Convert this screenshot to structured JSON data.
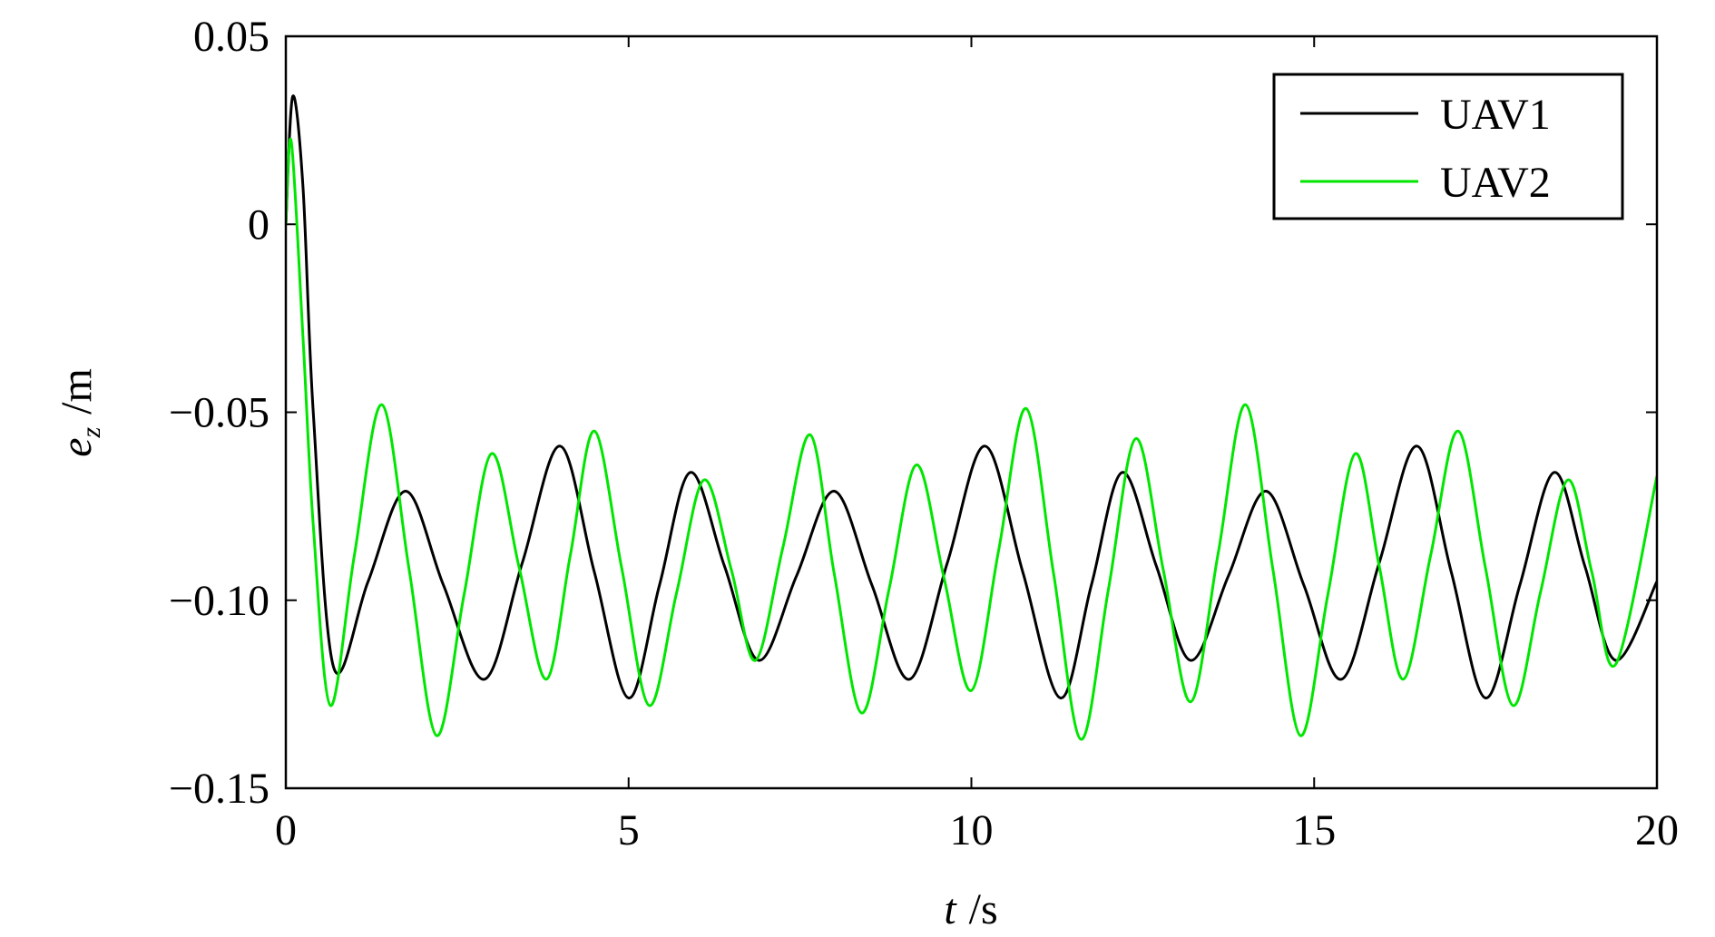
{
  "chart_data": {
    "type": "line",
    "xlabel": {
      "symbol": "t",
      "unit": "/s"
    },
    "ylabel": {
      "symbol": "e",
      "subscript": "z",
      "unit": "/m"
    },
    "xlim": [
      0,
      20
    ],
    "ylim": [
      -0.15,
      0.05
    ],
    "xticks": [
      0,
      5,
      10,
      15,
      20
    ],
    "yticks": [
      {
        "value": 0.05,
        "label": "0.05"
      },
      0,
      {
        "value": -0.05,
        "label": "−0.05"
      },
      {
        "value": -0.1,
        "label": "−0.10"
      },
      {
        "value": -0.15,
        "label": "−0.15"
      }
    ],
    "grid": false,
    "legend": "upper right",
    "series": [
      {
        "name": "UAV1",
        "color": "#000000",
        "x": [
          0,
          0.1,
          0.25,
          0.4,
          0.7,
          1.2,
          1.75,
          2.3,
          2.9,
          3.45,
          4.0,
          4.5,
          5.0,
          5.45,
          5.9,
          6.4,
          6.9,
          7.45,
          8.0,
          8.55,
          9.1,
          9.65,
          10.2,
          10.75,
          11.3,
          11.75,
          12.2,
          12.7,
          13.2,
          13.75,
          14.3,
          14.85,
          15.4,
          15.95,
          16.5,
          17.0,
          17.5,
          18.0,
          18.5,
          18.95,
          19.4,
          20
        ],
        "values": [
          0,
          0.034,
          0.01,
          -0.05,
          -0.118,
          -0.095,
          -0.071,
          -0.096,
          -0.121,
          -0.09,
          -0.059,
          -0.0925,
          -0.126,
          -0.096,
          -0.066,
          -0.091,
          -0.116,
          -0.0935,
          -0.071,
          -0.096,
          -0.121,
          -0.09,
          -0.059,
          -0.0925,
          -0.126,
          -0.096,
          -0.066,
          -0.091,
          -0.116,
          -0.0935,
          -0.071,
          -0.096,
          -0.121,
          -0.09,
          -0.059,
          -0.0925,
          -0.126,
          -0.096,
          -0.066,
          -0.091,
          -0.116,
          -0.095
        ]
      },
      {
        "name": "UAV2",
        "color": "#00e600",
        "x": [
          0,
          0.08,
          0.25,
          0.4,
          0.65,
          1.0,
          1.4,
          1.8,
          2.2,
          2.6,
          3.0,
          3.4,
          3.8,
          4.15,
          4.5,
          4.9,
          5.3,
          5.7,
          6.1,
          6.5,
          6.85,
          7.25,
          7.65,
          8.0,
          8.4,
          8.8,
          9.2,
          9.6,
          10.0,
          10.4,
          10.8,
          11.2,
          11.6,
          12.0,
          12.4,
          12.8,
          13.2,
          13.6,
          14.0,
          14.4,
          14.8,
          15.2,
          15.6,
          15.95,
          16.3,
          16.7,
          17.1,
          17.5,
          17.9,
          18.3,
          18.7,
          19.05,
          19.4,
          20
        ],
        "values": [
          0,
          0.022,
          -0.03,
          -0.08,
          -0.128,
          -0.088,
          -0.048,
          -0.092,
          -0.136,
          -0.0985,
          -0.061,
          -0.091,
          -0.121,
          -0.088,
          -0.055,
          -0.0915,
          -0.128,
          -0.098,
          -0.068,
          -0.092,
          -0.116,
          -0.086,
          -0.056,
          -0.093,
          -0.13,
          -0.097,
          -0.064,
          -0.094,
          -0.124,
          -0.0865,
          -0.049,
          -0.093,
          -0.137,
          -0.097,
          -0.057,
          -0.092,
          -0.127,
          -0.0875,
          -0.048,
          -0.092,
          -0.136,
          -0.0985,
          -0.061,
          -0.091,
          -0.121,
          -0.088,
          -0.055,
          -0.0915,
          -0.128,
          -0.098,
          -0.068,
          -0.0925,
          -0.117,
          -0.067
        ]
      }
    ]
  }
}
